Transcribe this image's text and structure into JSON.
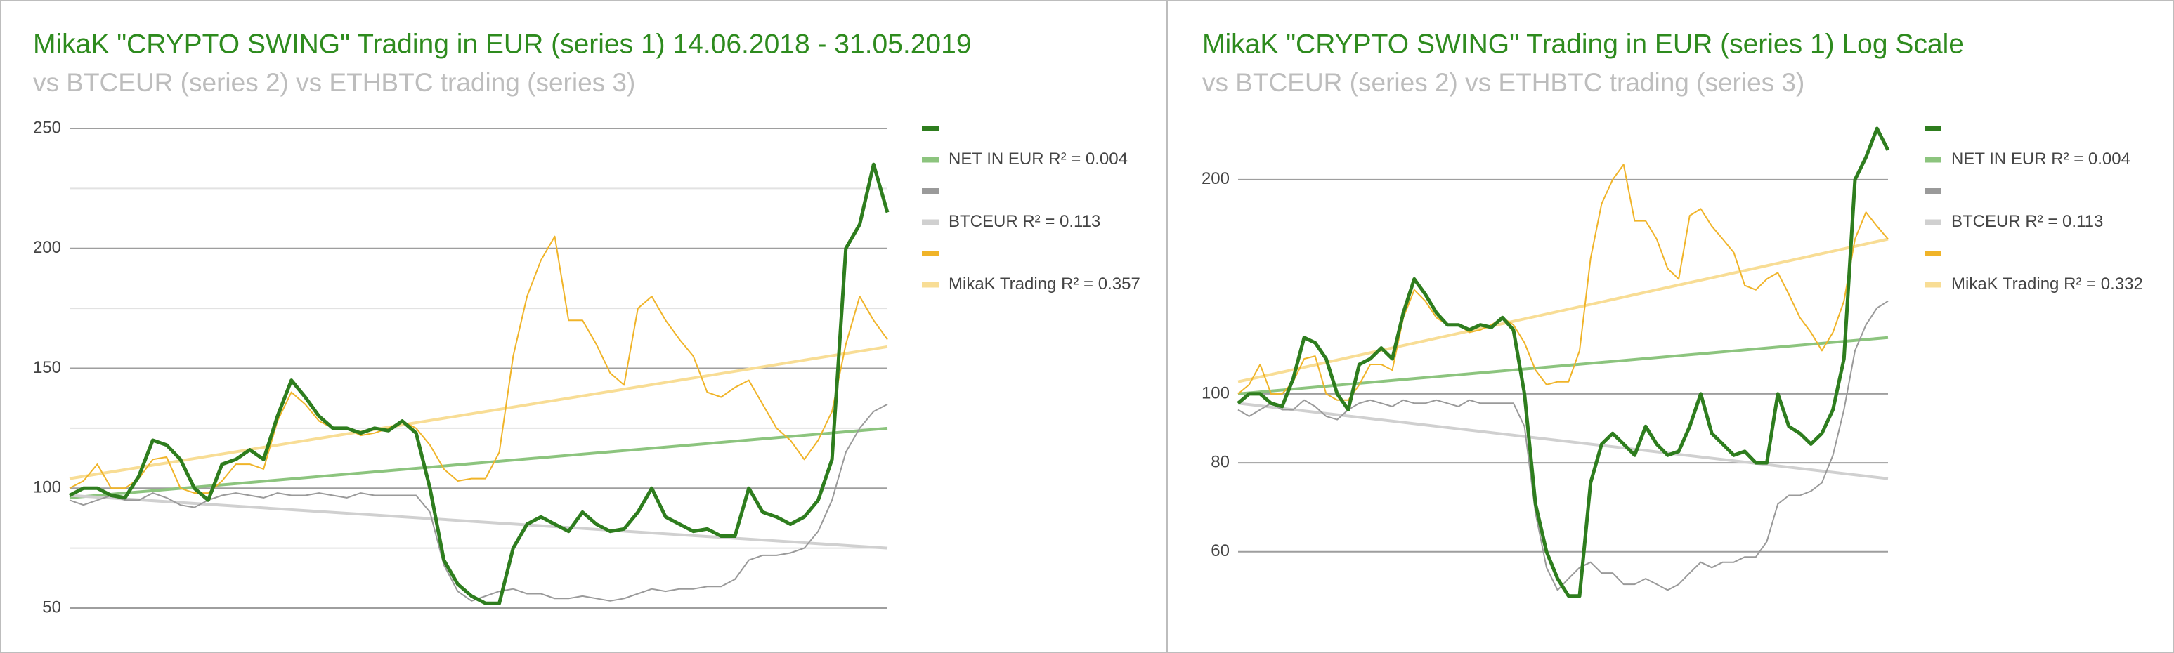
{
  "chart_data": [
    {
      "type": "line",
      "title": "MikaK \"CRYPTO SWING\" Trading in EUR (series 1) 14.06.2018 - 31.05.2019",
      "subtitle": "vs BTCEUR (series 2) vs ETHBTC trading (series 3)",
      "ylim": [
        50,
        250
      ],
      "yticks": [
        50,
        100,
        150,
        200,
        250
      ],
      "minor_yticks": [
        75,
        125,
        175,
        225
      ],
      "log_scale": false,
      "grid": true,
      "series": [
        {
          "color": "#2e7d1e",
          "values": [
            97,
            100,
            100,
            97,
            96,
            105,
            120,
            118,
            112,
            100,
            95,
            110,
            112,
            116,
            112,
            130,
            145,
            138,
            130,
            125,
            125,
            123,
            125,
            124,
            128,
            123,
            100,
            70,
            60,
            55,
            52,
            52,
            75,
            85,
            88,
            85,
            82,
            90,
            85,
            82,
            83,
            90,
            100,
            88,
            85,
            82,
            83,
            80,
            80,
            100,
            90,
            88,
            85,
            88,
            95,
            112,
            200,
            210,
            235,
            215
          ]
        },
        {
          "color": "#9a9a9a",
          "values": [
            95,
            93,
            95,
            97,
            95,
            95,
            98,
            96,
            93,
            92,
            95,
            97,
            98,
            97,
            96,
            98,
            97,
            97,
            98,
            97,
            96,
            98,
            97,
            97,
            97,
            97,
            90,
            68,
            57,
            53,
            55,
            57,
            58,
            56,
            56,
            54,
            54,
            55,
            54,
            53,
            54,
            56,
            58,
            57,
            58,
            58,
            59,
            59,
            62,
            70,
            72,
            72,
            73,
            75,
            82,
            95,
            115,
            125,
            132,
            135
          ]
        },
        {
          "color": "#f0b429",
          "values": [
            100,
            103,
            110,
            100,
            100,
            104,
            112,
            113,
            100,
            98,
            98,
            103,
            110,
            110,
            108,
            128,
            140,
            135,
            128,
            125,
            125,
            122,
            123,
            125,
            128,
            125,
            118,
            108,
            103,
            104,
            104,
            115,
            155,
            180,
            195,
            205,
            170,
            170,
            160,
            148,
            143,
            175,
            180,
            170,
            162,
            155,
            140,
            138,
            142,
            145,
            135,
            125,
            120,
            112,
            120,
            132,
            160,
            180,
            170,
            162
          ]
        }
      ],
      "trendlines": [
        {
          "name": "NET IN EUR R² = 0.004",
          "color": "#8cc47e",
          "values": [
            96,
            125
          ]
        },
        {
          "name": "BTCEUR R² = 0.113",
          "color": "#d0d0d0",
          "values": [
            97,
            75
          ]
        },
        {
          "name": "MikaK Trading R² = 0.357",
          "color": "#f8dd95",
          "values": [
            104,
            159
          ]
        }
      ]
    },
    {
      "type": "line",
      "title": "MikaK \"CRYPTO SWING\" Trading in EUR (series 1) Log Scale",
      "subtitle": "vs BTCEUR (series 2) vs ETHBTC trading (series 3)",
      "ylim": [
        50,
        236
      ],
      "yticks": [
        60,
        80,
        100,
        200
      ],
      "log_scale": true,
      "grid": true,
      "series": [
        {
          "color": "#2e7d1e",
          "values": [
            97,
            100,
            100,
            97,
            96,
            105,
            120,
            118,
            112,
            100,
            95,
            110,
            112,
            116,
            112,
            130,
            145,
            138,
            130,
            125,
            125,
            123,
            125,
            124,
            128,
            123,
            100,
            70,
            60,
            55,
            52,
            52,
            75,
            85,
            88,
            85,
            82,
            90,
            85,
            82,
            83,
            90,
            100,
            88,
            85,
            82,
            83,
            80,
            80,
            100,
            90,
            88,
            85,
            88,
            95,
            112,
            200,
            215,
            236,
            220
          ]
        },
        {
          "color": "#9a9a9a",
          "values": [
            95,
            93,
            95,
            97,
            95,
            95,
            98,
            96,
            93,
            92,
            95,
            97,
            98,
            97,
            96,
            98,
            97,
            97,
            98,
            97,
            96,
            98,
            97,
            97,
            97,
            97,
            90,
            68,
            57,
            53,
            55,
            57,
            58,
            56,
            56,
            54,
            54,
            55,
            54,
            53,
            54,
            56,
            58,
            57,
            58,
            58,
            59,
            59,
            62,
            70,
            72,
            72,
            73,
            75,
            82,
            95,
            115,
            125,
            132,
            135
          ]
        },
        {
          "color": "#f0b429",
          "values": [
            100,
            103,
            110,
            100,
            100,
            104,
            112,
            113,
            100,
            98,
            98,
            103,
            110,
            110,
            108,
            128,
            140,
            135,
            128,
            125,
            125,
            122,
            123,
            125,
            128,
            125,
            118,
            108,
            103,
            104,
            104,
            115,
            155,
            185,
            200,
            210,
            175,
            175,
            165,
            150,
            145,
            178,
            182,
            172,
            165,
            158,
            142,
            140,
            145,
            148,
            138,
            128,
            122,
            115,
            122,
            135,
            165,
            180,
            172,
            165
          ]
        }
      ],
      "trendlines": [
        {
          "name": "NET IN EUR R² = 0.004",
          "color": "#8cc47e",
          "values": [
            100,
            120
          ]
        },
        {
          "name": "BTCEUR R² = 0.113",
          "color": "#d0d0d0",
          "values": [
            97,
            76
          ]
        },
        {
          "name": "MikaK Trading R² = 0.332",
          "color": "#f8dd95",
          "values": [
            104,
            165
          ]
        }
      ]
    }
  ]
}
